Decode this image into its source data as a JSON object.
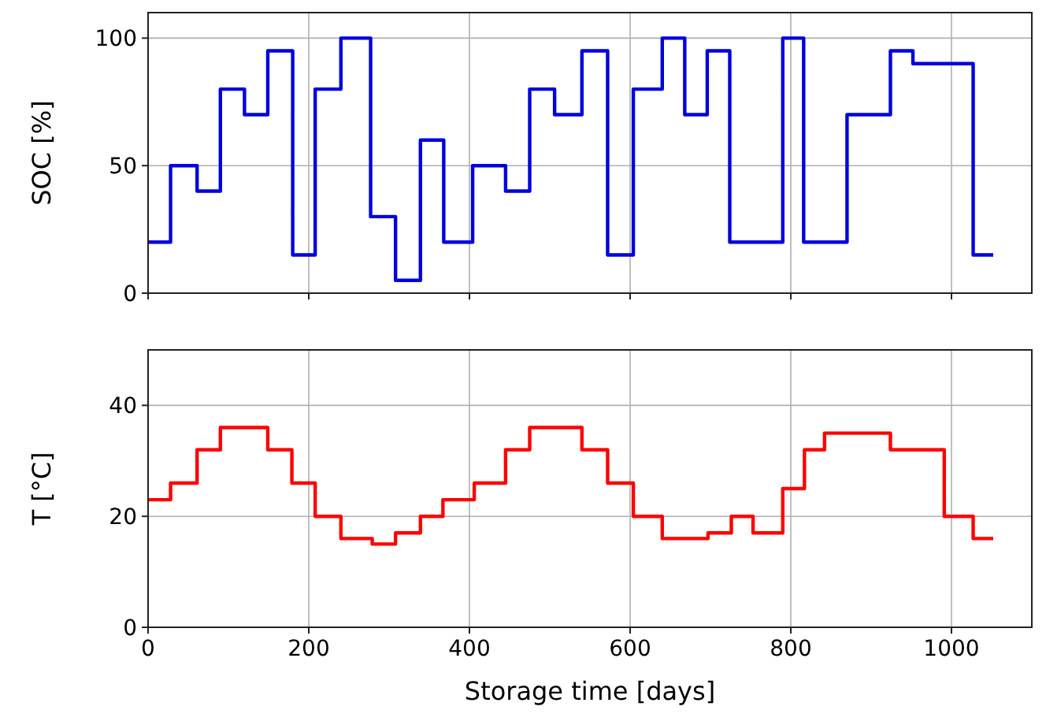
{
  "chart_data": [
    {
      "type": "step",
      "ylabel": "SOC [%]",
      "xlim": [
        0,
        1100
      ],
      "xticks": [
        0,
        200,
        400,
        600,
        800,
        1000
      ],
      "ylim": [
        0,
        110
      ],
      "yticks": [
        0,
        50,
        100
      ],
      "grid": true,
      "tick_labels": "y",
      "line_style": "solid",
      "series": [
        {
          "color": "#0000dd",
          "x": [
            0,
            28,
            61,
            90,
            120,
            149,
            180,
            208,
            240,
            277,
            308,
            339,
            368,
            404,
            445,
            475,
            506,
            540,
            572,
            604,
            640,
            668,
            696,
            724,
            790,
            816,
            870,
            924,
            952,
            1027,
            1052
          ],
          "values": [
            20,
            50,
            40,
            80,
            70,
            95,
            15,
            80,
            100,
            30,
            5,
            60,
            20,
            50,
            40,
            80,
            70,
            95,
            15,
            80,
            100,
            70,
            95,
            20,
            100,
            20,
            70,
            95,
            90,
            15,
            15
          ]
        }
      ]
    },
    {
      "type": "step",
      "ylabel": "T [°C]",
      "xlabel": "Storage time [days]",
      "xlim": [
        0,
        1100
      ],
      "xticks": [
        0,
        200,
        400,
        600,
        800,
        1000
      ],
      "ylim": [
        0,
        50
      ],
      "yticks": [
        0,
        20,
        40
      ],
      "grid": true,
      "line_style": "solid",
      "series": [
        {
          "color": "#ff0000",
          "x": [
            0,
            28,
            61,
            90,
            149,
            179,
            208,
            240,
            279,
            308,
            339,
            367,
            406,
            445,
            475,
            540,
            572,
            604,
            640,
            697,
            726,
            753,
            790,
            817,
            842,
            924,
            991,
            1027,
            1052
          ],
          "values": [
            23,
            26,
            32,
            36,
            32,
            26,
            20,
            16,
            15,
            17,
            20,
            23,
            26,
            32,
            36,
            32,
            26,
            20,
            16,
            17,
            20,
            17,
            25,
            32,
            35,
            32,
            20,
            16,
            16
          ]
        }
      ]
    }
  ]
}
